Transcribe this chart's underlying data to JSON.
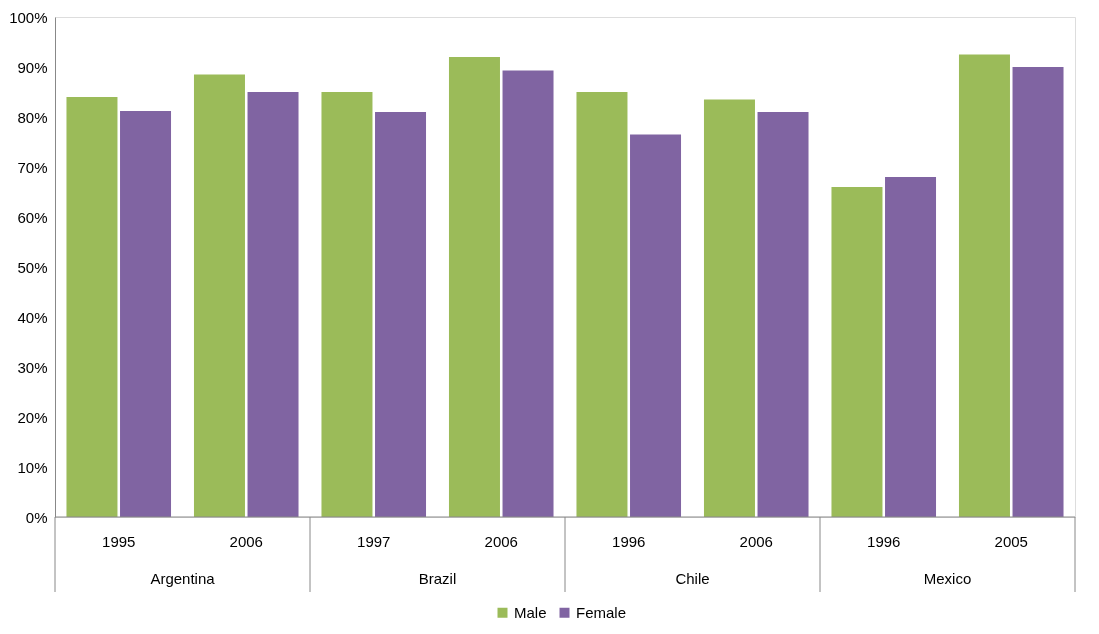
{
  "chart_data": {
    "type": "bar",
    "categories": [
      "1995",
      "2006",
      "1997",
      "2006",
      "1996",
      "2006",
      "1996",
      "2005"
    ],
    "annotations": [
      "Argentina",
      "Brazil",
      "Chile",
      "Mexico"
    ],
    "series": [
      {
        "name": "Male",
        "color": "#9bbb59",
        "values": [
          84,
          88.5,
          85,
          92,
          85,
          83.5,
          66,
          92.5
        ]
      },
      {
        "name": "Female",
        "color": "#8064a2",
        "values": [
          81.2,
          85,
          81,
          89.3,
          76.5,
          81,
          68,
          90
        ]
      }
    ],
    "ylim": [
      0,
      100
    ],
    "yticks": [
      {
        "value": 0,
        "label": "0%"
      },
      {
        "value": 10,
        "label": "10%"
      },
      {
        "value": 20,
        "label": "20%"
      },
      {
        "value": 30,
        "label": "30%"
      },
      {
        "value": 40,
        "label": "40%"
      },
      {
        "value": 50,
        "label": "50%"
      },
      {
        "value": 60,
        "label": "60%"
      },
      {
        "value": 70,
        "label": "70%"
      },
      {
        "value": 80,
        "label": "80%"
      },
      {
        "value": 90,
        "label": "90%"
      },
      {
        "value": 100,
        "label": "100%"
      }
    ],
    "grid": false,
    "legend": "bottom"
  }
}
